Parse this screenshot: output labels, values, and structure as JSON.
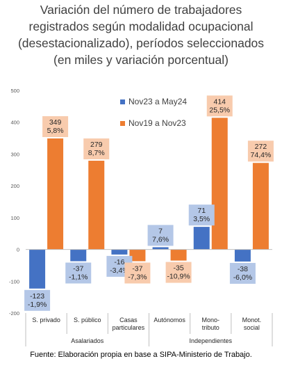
{
  "title_lines": [
    "Variación del número de trabajadores",
    "registrados según modalidad ocupacional",
    "(desestacionalizado), períodos seleccionados",
    "(en miles y variación porcentual)"
  ],
  "source": "Fuente: Elaboración propia en base a SIPA-Ministerio de Trabajo.",
  "colors": {
    "nov23_may24": "#4472C4",
    "nov19_nov23": "#ED7D31",
    "label_blue_bg": "#B4C7E7",
    "label_orange_bg": "#F8CBAD"
  },
  "chart_data": {
    "type": "bar",
    "categories": [
      "S. privado",
      "S. público",
      "Casas particulares",
      "Autónomos",
      "Mono-tributo",
      "Monot. social"
    ],
    "category_labels": [
      [
        "S. privado"
      ],
      [
        "S. público"
      ],
      [
        "Casas",
        "particulares"
      ],
      [
        "Autónomos"
      ],
      [
        "Mono-",
        "tributo"
      ],
      [
        "Monot.",
        "social"
      ]
    ],
    "groups": [
      {
        "label": "Asalariados",
        "categories": [
          0,
          1,
          2
        ]
      },
      {
        "label": "Independientes",
        "categories": [
          3,
          4,
          5
        ]
      }
    ],
    "series": [
      {
        "name": "Nov23 a May24",
        "values": [
          -123,
          -37,
          -16,
          7,
          71,
          -38
        ],
        "labels": [
          "-123\n-1,9%",
          "-37\n-1,1%",
          "-16\n-3,4%",
          "7\n7,6%",
          "71\n3,5%",
          "-38\n-6,0%"
        ]
      },
      {
        "name": "Nov19 a Nov23",
        "values": [
          349,
          279,
          -37,
          -35,
          414,
          272
        ],
        "labels": [
          "349\n5,8%",
          "279\n8,7%",
          "-37\n-7,3%",
          "-35\n-10,9%",
          "414\n25,5%",
          "272\n74,4%"
        ]
      }
    ],
    "ylim": [
      -200,
      500
    ],
    "yticks": [
      "500",
      "400",
      "300",
      "200",
      "100",
      "0",
      "-100",
      "-200"
    ],
    "legend_position": "top-right",
    "grid": false
  }
}
